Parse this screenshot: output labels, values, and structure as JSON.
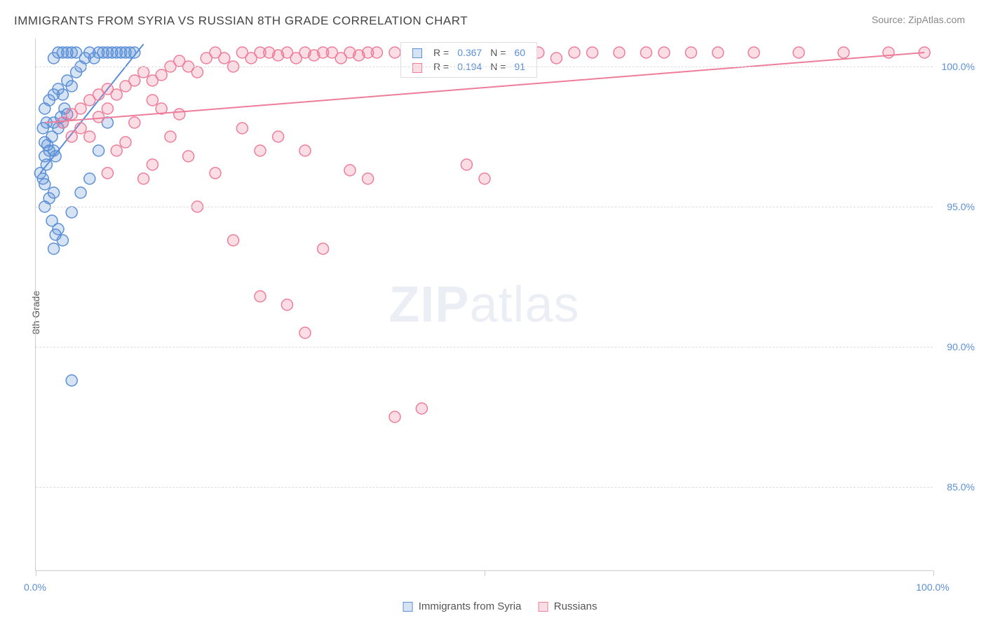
{
  "title": "IMMIGRANTS FROM SYRIA VS RUSSIAN 8TH GRADE CORRELATION CHART",
  "source": "Source: ZipAtlas.com",
  "ylabel": "8th Grade",
  "watermark_bold": "ZIP",
  "watermark_light": "atlas",
  "chart": {
    "type": "scatter",
    "xlim": [
      0,
      100
    ],
    "ylim": [
      82,
      101
    ],
    "xticks": [
      0,
      50,
      100
    ],
    "xtick_labels": [
      "0.0%",
      "",
      "100.0%"
    ],
    "yticks": [
      85,
      90,
      95,
      100
    ],
    "ytick_labels": [
      "85.0%",
      "90.0%",
      "95.0%",
      "100.0%"
    ],
    "grid_color": "#dddddd",
    "background_color": "#ffffff",
    "marker_radius": 8,
    "marker_stroke_width": 1.5,
    "line_width": 2,
    "series": [
      {
        "name": "Immigrants from Syria",
        "fill": "rgba(91,143,214,0.25)",
        "stroke": "#5b8fd6",
        "r_value": "0.367",
        "n_value": "60",
        "trend": {
          "x1": 0.5,
          "y1": 96.2,
          "x2": 12,
          "y2": 100.8
        },
        "points": [
          [
            0.5,
            96.2
          ],
          [
            0.8,
            96.0
          ],
          [
            1.0,
            95.8
          ],
          [
            1.2,
            96.5
          ],
          [
            1.5,
            97.0
          ],
          [
            1.0,
            97.3
          ],
          [
            1.8,
            97.5
          ],
          [
            2.0,
            97.0
          ],
          [
            2.2,
            96.8
          ],
          [
            2.5,
            97.8
          ],
          [
            2.0,
            98.0
          ],
          [
            2.8,
            98.2
          ],
          [
            3.0,
            98.0
          ],
          [
            3.2,
            98.5
          ],
          [
            3.5,
            98.3
          ],
          [
            1.0,
            98.5
          ],
          [
            1.5,
            98.8
          ],
          [
            2.0,
            99.0
          ],
          [
            2.5,
            99.2
          ],
          [
            3.0,
            99.0
          ],
          [
            3.5,
            99.5
          ],
          [
            4.0,
            99.3
          ],
          [
            4.5,
            99.8
          ],
          [
            5.0,
            100.0
          ],
          [
            5.5,
            100.3
          ],
          [
            6.0,
            100.5
          ],
          [
            6.5,
            100.3
          ],
          [
            7.0,
            100.5
          ],
          [
            7.5,
            100.5
          ],
          [
            8.0,
            100.5
          ],
          [
            8.5,
            100.5
          ],
          [
            9.0,
            100.5
          ],
          [
            9.5,
            100.5
          ],
          [
            10.0,
            100.5
          ],
          [
            10.5,
            100.5
          ],
          [
            11.0,
            100.5
          ],
          [
            4.0,
            100.5
          ],
          [
            4.5,
            100.5
          ],
          [
            3.5,
            100.5
          ],
          [
            3.0,
            100.5
          ],
          [
            2.5,
            100.5
          ],
          [
            2.0,
            100.3
          ],
          [
            0.8,
            97.8
          ],
          [
            1.2,
            98.0
          ],
          [
            1.0,
            95.0
          ],
          [
            1.5,
            95.3
          ],
          [
            2.0,
            95.5
          ],
          [
            1.8,
            94.5
          ],
          [
            2.2,
            94.0
          ],
          [
            2.5,
            94.2
          ],
          [
            3.0,
            93.8
          ],
          [
            4.0,
            94.8
          ],
          [
            5.0,
            95.5
          ],
          [
            6.0,
            96.0
          ],
          [
            7.0,
            97.0
          ],
          [
            8.0,
            98.0
          ],
          [
            1.0,
            96.8
          ],
          [
            1.3,
            97.2
          ],
          [
            4.0,
            88.8
          ],
          [
            2.0,
            93.5
          ]
        ]
      },
      {
        "name": "Russians",
        "fill": "rgba(240,120,150,0.25)",
        "stroke": "#ed7d9a",
        "r_value": "0.194",
        "n_value": "91",
        "trend": {
          "x1": 1,
          "y1": 98.0,
          "x2": 99,
          "y2": 100.5
        },
        "points": [
          [
            3,
            98.0
          ],
          [
            4,
            98.3
          ],
          [
            5,
            98.5
          ],
          [
            6,
            98.8
          ],
          [
            7,
            99.0
          ],
          [
            8,
            99.2
          ],
          [
            9,
            99.0
          ],
          [
            10,
            99.3
          ],
          [
            11,
            99.5
          ],
          [
            12,
            99.8
          ],
          [
            13,
            99.5
          ],
          [
            14,
            99.7
          ],
          [
            15,
            100.0
          ],
          [
            16,
            100.2
          ],
          [
            17,
            100.0
          ],
          [
            18,
            99.8
          ],
          [
            19,
            100.3
          ],
          [
            20,
            100.5
          ],
          [
            21,
            100.3
          ],
          [
            22,
            100.0
          ],
          [
            23,
            100.5
          ],
          [
            24,
            100.3
          ],
          [
            25,
            100.5
          ],
          [
            26,
            100.5
          ],
          [
            27,
            100.4
          ],
          [
            28,
            100.5
          ],
          [
            29,
            100.3
          ],
          [
            30,
            100.5
          ],
          [
            31,
            100.4
          ],
          [
            32,
            100.5
          ],
          [
            33,
            100.5
          ],
          [
            34,
            100.3
          ],
          [
            35,
            100.5
          ],
          [
            36,
            100.4
          ],
          [
            37,
            100.5
          ],
          [
            38,
            100.5
          ],
          [
            40,
            100.5
          ],
          [
            42,
            100.5
          ],
          [
            44,
            100.3
          ],
          [
            46,
            100.5
          ],
          [
            48,
            100.5
          ],
          [
            50,
            100.4
          ],
          [
            52,
            100.5
          ],
          [
            54,
            100.5
          ],
          [
            56,
            100.5
          ],
          [
            58,
            100.3
          ],
          [
            60,
            100.5
          ],
          [
            62,
            100.5
          ],
          [
            65,
            100.5
          ],
          [
            68,
            100.5
          ],
          [
            70,
            100.5
          ],
          [
            73,
            100.5
          ],
          [
            76,
            100.5
          ],
          [
            80,
            100.5
          ],
          [
            85,
            100.5
          ],
          [
            90,
            100.5
          ],
          [
            95,
            100.5
          ],
          [
            99,
            100.5
          ],
          [
            4,
            97.5
          ],
          [
            5,
            97.8
          ],
          [
            6,
            97.5
          ],
          [
            7,
            98.2
          ],
          [
            8,
            98.5
          ],
          [
            9,
            97.0
          ],
          [
            10,
            97.3
          ],
          [
            11,
            98.0
          ],
          [
            13,
            96.5
          ],
          [
            15,
            97.5
          ],
          [
            17,
            96.8
          ],
          [
            8,
            96.2
          ],
          [
            12,
            96.0
          ],
          [
            20,
            96.2
          ],
          [
            25,
            97.0
          ],
          [
            23,
            97.8
          ],
          [
            27,
            97.5
          ],
          [
            30,
            97.0
          ],
          [
            35,
            96.3
          ],
          [
            37,
            96.0
          ],
          [
            18,
            95.0
          ],
          [
            22,
            93.8
          ],
          [
            25,
            91.8
          ],
          [
            28,
            91.5
          ],
          [
            30,
            90.5
          ],
          [
            32,
            93.5
          ],
          [
            48,
            96.5
          ],
          [
            50,
            96.0
          ],
          [
            40,
            87.5
          ],
          [
            43,
            87.8
          ],
          [
            13,
            98.8
          ],
          [
            14,
            98.5
          ],
          [
            16,
            98.3
          ]
        ]
      }
    ]
  },
  "legend_top": {
    "r_label": "R =",
    "n_label": "N ="
  },
  "legend_bottom": {
    "items": [
      "Immigrants from Syria",
      "Russians"
    ]
  }
}
